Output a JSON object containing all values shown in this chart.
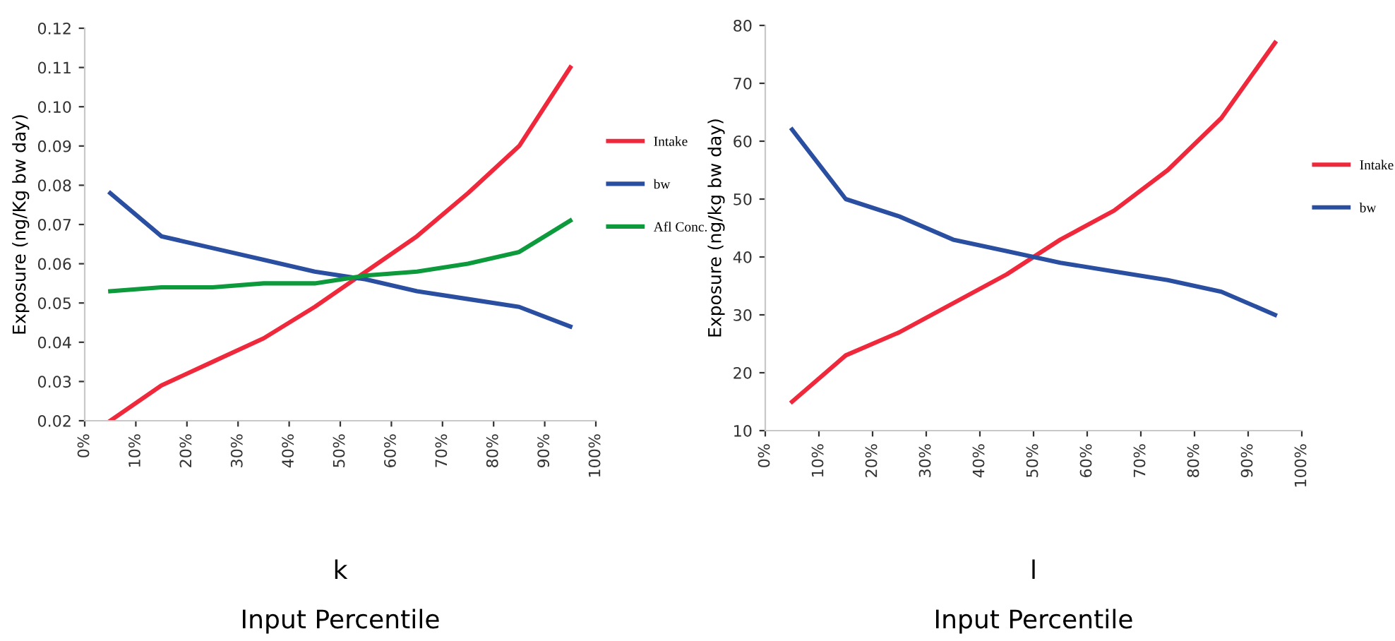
{
  "chart_data": [
    {
      "type": "line",
      "title": "k",
      "xlabel": "Input Percentile",
      "ylabel": "Exposure (ng/Kg bw day)",
      "x": [
        5,
        15,
        25,
        35,
        45,
        55,
        65,
        75,
        85,
        95
      ],
      "series": [
        {
          "name": "Intake",
          "color": "#f0283c",
          "values": [
            0.02,
            0.029,
            0.035,
            0.041,
            0.049,
            0.058,
            0.067,
            0.078,
            0.09,
            0.11
          ]
        },
        {
          "name": "bw",
          "color": "#2a4ea0",
          "values": [
            0.078,
            0.067,
            0.064,
            0.061,
            0.058,
            0.056,
            0.053,
            0.051,
            0.049,
            0.044
          ]
        },
        {
          "name": "Afl Conc.",
          "color": "#0c9a3c",
          "values": [
            0.053,
            0.054,
            0.054,
            0.055,
            0.055,
            0.057,
            0.058,
            0.06,
            0.063,
            0.071
          ]
        }
      ],
      "xlim": [
        0,
        100
      ],
      "xticks": [
        {
          "value": 0,
          "label": "0%"
        },
        {
          "value": 10,
          "label": "10%"
        },
        {
          "value": 20,
          "label": "20%"
        },
        {
          "value": 30,
          "label": "30%"
        },
        {
          "value": 40,
          "label": "40%"
        },
        {
          "value": 50,
          "label": "50%"
        },
        {
          "value": 60,
          "label": "60%"
        },
        {
          "value": 70,
          "label": "70%"
        },
        {
          "value": 80,
          "label": "80%"
        },
        {
          "value": 90,
          "label": "90%"
        },
        {
          "value": 100,
          "label": "100%"
        }
      ],
      "ylim": [
        0.02,
        0.12
      ],
      "yticks": [
        0.02,
        0.03,
        0.04,
        0.05,
        0.06,
        0.07,
        0.08,
        0.09,
        {
          "value": 0.1,
          "label": "0.10"
        },
        0.11,
        {
          "value": 0.12,
          "label": "0.12"
        }
      ],
      "grid": false,
      "legend": "right",
      "marker": "none",
      "line_style": "solid"
    },
    {
      "type": "line",
      "title": "l",
      "xlabel": "Input Percentile",
      "ylabel": "Exposure (ng/kg bw day)",
      "x": [
        5,
        15,
        25,
        35,
        45,
        55,
        65,
        75,
        85,
        95
      ],
      "series": [
        {
          "name": "Intake",
          "color": "#f0283c",
          "values": [
            15,
            23,
            27,
            32,
            37,
            43,
            48,
            55,
            64,
            77
          ]
        },
        {
          "name": "bw",
          "color": "#2a4ea0",
          "values": [
            62,
            50,
            47,
            43,
            41,
            39,
            37.5,
            36,
            34,
            30
          ]
        }
      ],
      "xlim": [
        0,
        100
      ],
      "xticks": [
        {
          "value": 0,
          "label": "0%"
        },
        {
          "value": 10,
          "label": "10%"
        },
        {
          "value": 20,
          "label": "20%"
        },
        {
          "value": 30,
          "label": "30%"
        },
        {
          "value": 40,
          "label": "40%"
        },
        {
          "value": 50,
          "label": "50%"
        },
        {
          "value": 60,
          "label": "60%"
        },
        {
          "value": 70,
          "label": "70%"
        },
        {
          "value": 80,
          "label": "80%"
        },
        {
          "value": 90,
          "label": "90%"
        },
        {
          "value": 100,
          "label": "100%"
        }
      ],
      "ylim": [
        10,
        80
      ],
      "yticks": [
        10,
        20,
        30,
        40,
        50,
        60,
        70,
        80
      ],
      "grid": false,
      "legend": "right",
      "marker": "none",
      "line_style": "solid"
    }
  ]
}
